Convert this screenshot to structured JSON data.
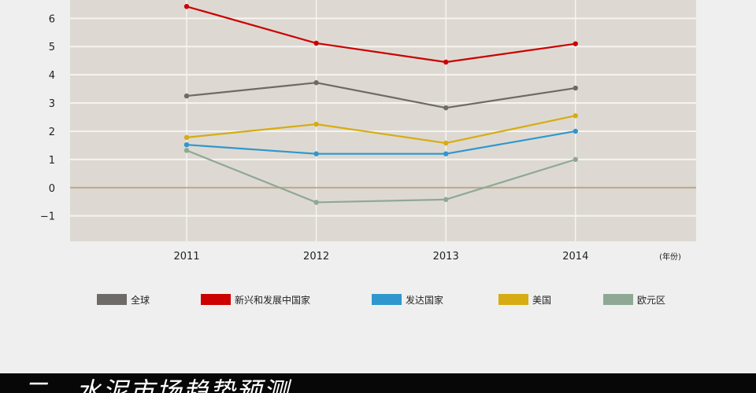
{
  "chart_data": {
    "type": "line",
    "categories": [
      "2011",
      "2012",
      "2013",
      "2014"
    ],
    "x_unit_label": "(年份)",
    "ylim": [
      -1.9,
      6.65
    ],
    "yticks": [
      "−1",
      "0",
      "1",
      "2",
      "3",
      "4",
      "5",
      "6"
    ],
    "ytick_values": [
      -1,
      0,
      1,
      2,
      3,
      4,
      5,
      6
    ],
    "grid": true,
    "legend_position": "bottom",
    "series": [
      {
        "name": "全球",
        "color": "#6d6a67",
        "values": [
          3.25,
          3.72,
          2.83,
          3.53
        ]
      },
      {
        "name": "新兴和发展中国家",
        "color": "#cc0000",
        "values": [
          6.42,
          5.12,
          4.45,
          5.1
        ]
      },
      {
        "name": "发达国家",
        "color": "#2f97cd",
        "values": [
          1.52,
          1.2,
          1.2,
          2.0
        ]
      },
      {
        "name": "美国",
        "color": "#d7ac12",
        "values": [
          1.78,
          2.25,
          1.58,
          2.55
        ]
      },
      {
        "name": "欧元区",
        "color": "#8fa895",
        "values": [
          1.32,
          -0.52,
          -0.42,
          1.0
        ]
      }
    ]
  },
  "banner": {
    "title": "二、水泥市场趋势预测"
  }
}
